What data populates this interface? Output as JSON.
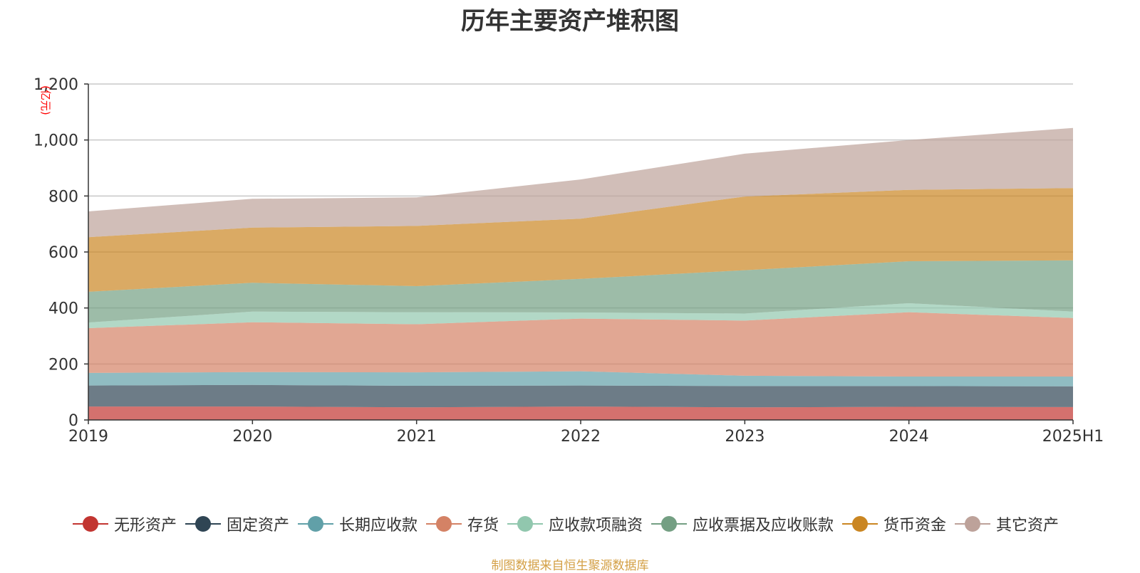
{
  "chart_data": {
    "type": "area",
    "stacked": true,
    "title": "历年主要资产堆积图",
    "ylabel": "(亿元)",
    "xlabel": "",
    "categories": [
      "2019",
      "2020",
      "2021",
      "2022",
      "2023",
      "2024",
      "2025H1"
    ],
    "ylim": [
      0,
      1200
    ],
    "yticks": [
      "0",
      "200",
      "400",
      "600",
      "800",
      "1,000",
      "1,200"
    ],
    "ytick_values": [
      0,
      200,
      400,
      600,
      800,
      1000,
      1200
    ],
    "grid": true,
    "legend_position": "bottom",
    "series": [
      {
        "name": "无形资产",
        "color": "#c23531",
        "values": [
          48,
          48,
          45,
          48,
          45,
          47,
          46
        ]
      },
      {
        "name": "固定资产",
        "color": "#2f4554",
        "values": [
          75,
          77,
          77,
          75,
          76,
          74,
          74
        ]
      },
      {
        "name": "长期应收款",
        "color": "#61a0a8",
        "values": [
          45,
          46,
          48,
          51,
          37,
          34,
          35
        ]
      },
      {
        "name": "存货",
        "color": "#d48265",
        "values": [
          160,
          178,
          172,
          188,
          197,
          230,
          209
        ]
      },
      {
        "name": "应收款项融资",
        "color": "#91c7ae",
        "values": [
          20,
          38,
          43,
          22,
          25,
          32,
          23
        ]
      },
      {
        "name": "应收票据及应收账款",
        "color": "#749f83",
        "values": [
          110,
          103,
          93,
          120,
          155,
          150,
          183
        ]
      },
      {
        "name": "货币资金",
        "color": "#ca8622",
        "values": [
          195,
          197,
          215,
          215,
          263,
          255,
          258
        ]
      },
      {
        "name": "其它资产",
        "color": "#bda29a",
        "values": [
          92,
          103,
          102,
          140,
          153,
          178,
          215
        ]
      }
    ]
  },
  "source_note": "制图数据来自恒生聚源数据库"
}
